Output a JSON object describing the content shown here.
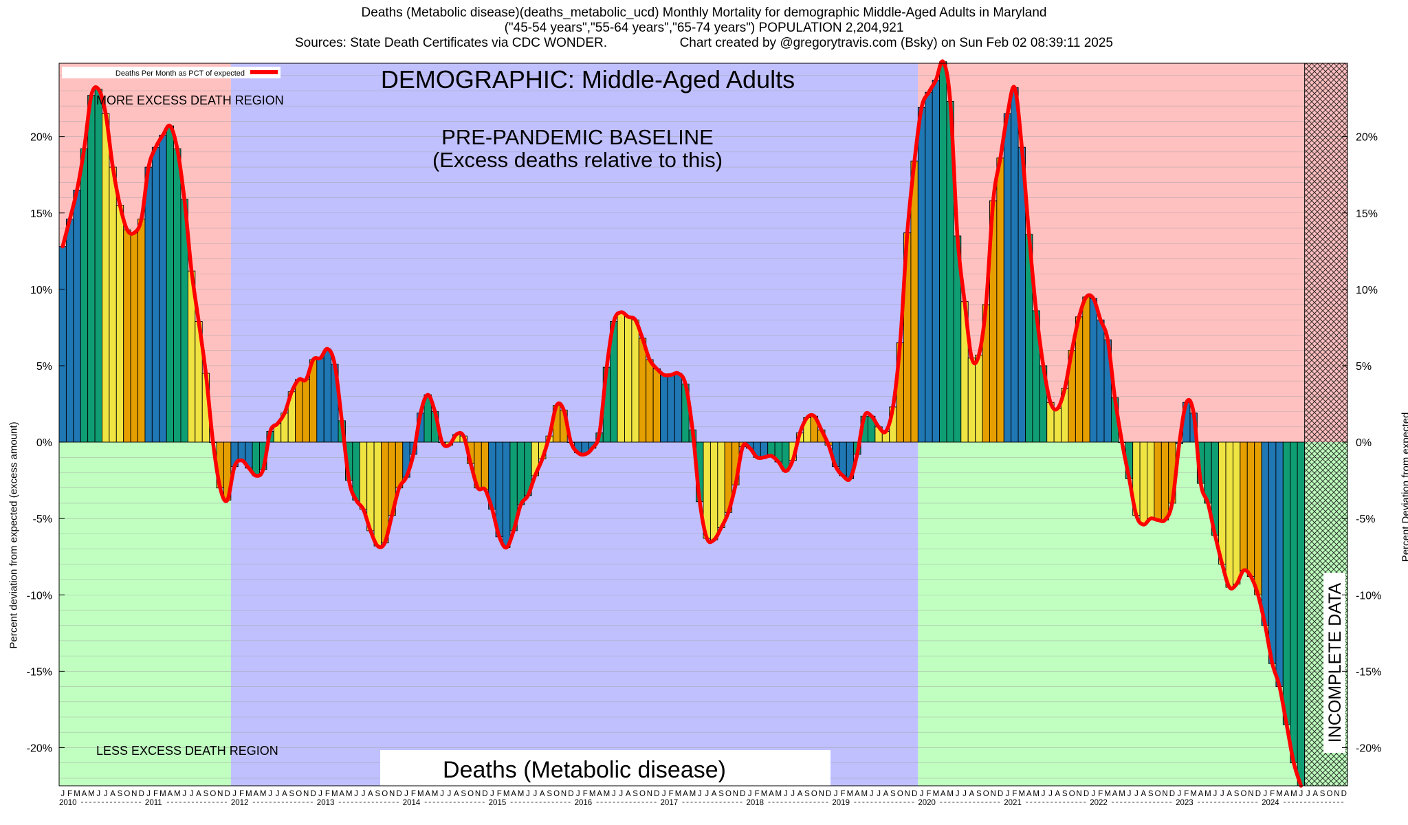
{
  "header": {
    "line1": "Deaths (Metabolic disease)(deaths_metabolic_ucd) Monthly Mortality for demographic Middle-Aged Adults in Maryland",
    "line2": "(\"45-54 years\",\"55-64 years\",\"65-74 years\") POPULATION 2,204,921",
    "line3_left": "Sources: State Death Certificates via CDC WONDER.",
    "line3_right": "Chart created by @gregorytravis.com (Bsky) on Sun Feb 02 08:39:11 2025"
  },
  "annotations": {
    "demographic": "DEMOGRAPHIC: Middle-Aged Adults",
    "baseline_line1": "PRE-PANDEMIC BASELINE",
    "baseline_line2": "(Excess deaths relative to this)",
    "more_region": "MORE EXCESS DEATH REGION",
    "less_region": "LESS EXCESS DEATH REGION",
    "cause_box": "Deaths (Metabolic disease)",
    "incomplete": "INCOMPLETE DATA",
    "legend_label": "Deaths Per Month as PCT of expected"
  },
  "colors": {
    "more_region": "#ffc0c0",
    "less_region": "#c0ffc0",
    "baseline_region": "#c0c0ff",
    "line": "#ff0000",
    "bar_palette": [
      "#1f77b4",
      "#0f9e73",
      "#f0e442",
      "#e69f00"
    ]
  },
  "chart_data": {
    "type": "bar",
    "title": "Deaths (Metabolic disease)(deaths_metabolic_ucd) Monthly Mortality for demographic Middle-Aged Adults in Maryland",
    "ylabel": "Percent deviation from expected (excess amount)",
    "ylabel_right": "Percent Deviation from expected",
    "ylim": [
      -22.5,
      24.8
    ],
    "yticks": [
      20,
      15,
      10,
      5,
      0,
      -5,
      -10,
      -15,
      -20
    ],
    "ytick_labels": [
      "20%",
      "15%",
      "10%",
      "5%",
      "0%",
      "-5%",
      "-10%",
      "-15%",
      "-20%"
    ],
    "month_letters": [
      "J",
      "F",
      "M",
      "A",
      "M",
      "J",
      "J",
      "A",
      "S",
      "O",
      "N",
      "D"
    ],
    "years": [
      "2010",
      "2011",
      "2012",
      "2013",
      "2014",
      "2015",
      "2016",
      "2017",
      "2018",
      "2019",
      "2020",
      "2021",
      "2022",
      "2023",
      "2024"
    ],
    "start": "2010-01",
    "baseline_period": [
      "2012-01",
      "2019-12"
    ],
    "incomplete_from": "2024-07",
    "grid": true,
    "legend_position": "top-left",
    "series": [
      {
        "name": "Deaths Per Month as PCT of expected",
        "values": [
          12.8,
          14.6,
          16.5,
          19.2,
          22.7,
          23.1,
          21.5,
          18.0,
          15.5,
          13.9,
          13.7,
          14.6,
          18.0,
          19.3,
          20.1,
          20.7,
          19.2,
          15.9,
          11.2,
          7.9,
          4.5,
          0.0,
          -3.0,
          -3.8,
          -1.6,
          -1.2,
          -1.7,
          -2.2,
          -1.8,
          0.7,
          1.2,
          1.9,
          3.3,
          4.1,
          4.1,
          5.4,
          5.5,
          6.1,
          5.1,
          1.4,
          -2.5,
          -3.8,
          -4.4,
          -5.8,
          -6.8,
          -6.6,
          -4.8,
          -3.0,
          -2.3,
          -0.8,
          1.9,
          3.1,
          2.0,
          0.0,
          -0.2,
          0.5,
          0.4,
          -1.4,
          -3.0,
          -3.1,
          -4.4,
          -6.2,
          -6.9,
          -5.8,
          -4.1,
          -3.5,
          -2.2,
          -1.1,
          0.4,
          2.4,
          2.1,
          0.0,
          -0.7,
          -0.8,
          -0.4,
          0.6,
          4.9,
          7.9,
          8.5,
          8.2,
          8.0,
          6.8,
          5.4,
          4.8,
          4.4,
          4.4,
          4.5,
          3.8,
          0.8,
          -3.9,
          -6.3,
          -6.4,
          -5.6,
          -4.6,
          -2.8,
          -0.3,
          -0.4,
          -1.0,
          -1.0,
          -0.9,
          -1.3,
          -1.9,
          -1.2,
          0.6,
          1.6,
          1.7,
          0.8,
          -0.2,
          -1.6,
          -2.2,
          -2.4,
          -0.8,
          1.7,
          1.7,
          1.0,
          0.7,
          2.3,
          6.5,
          13.7,
          18.4,
          21.9,
          22.9,
          23.7,
          24.9,
          22.3,
          13.5,
          9.2,
          5.5,
          5.7,
          9.0,
          15.8,
          18.6,
          21.5,
          23.2,
          19.3,
          13.6,
          8.6,
          5.0,
          2.6,
          2.2,
          3.5,
          6.0,
          8.2,
          9.5,
          9.4,
          8.0,
          6.7,
          2.9,
          0.0,
          -2.4,
          -4.8,
          -5.4,
          -5.0,
          -5.1,
          -5.1,
          -4.0,
          -0.1,
          2.6,
          1.9,
          -2.7,
          -4.0,
          -6.1,
          -8.0,
          -9.5,
          -9.3,
          -8.4,
          -8.8,
          -10.0,
          -12.0,
          -14.5,
          -16.0,
          -18.5,
          -21.0,
          -22.5
        ]
      }
    ]
  }
}
